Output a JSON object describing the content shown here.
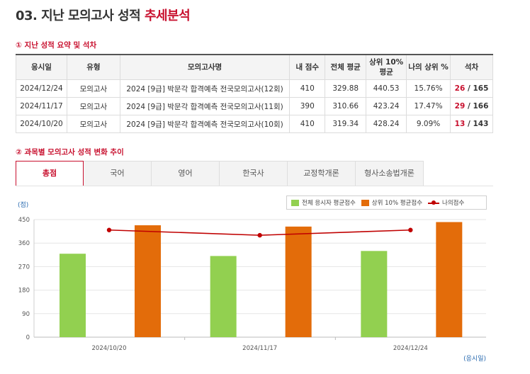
{
  "page": {
    "title_prefix": "03. 지난 모의고사 성적 ",
    "title_accent": "추세분석"
  },
  "summary": {
    "heading": "① 지난 성적 요약 및 석차",
    "columns": [
      "응시일",
      "유형",
      "모의고사명",
      "내 점수",
      "전체 평균",
      "상위 10%\n평균",
      "나의 상위 %",
      "석차"
    ],
    "rows": [
      {
        "date": "2024/12/24",
        "type": "모의고사",
        "name": "2024 [9급] 박문각 합격예측 전국모의고사(12회)",
        "score": "410",
        "avg": "329.88",
        "top10": "440.53",
        "pct": "15.76%",
        "rank": "26",
        "total": "165"
      },
      {
        "date": "2024/11/17",
        "type": "모의고사",
        "name": "2024 [9급] 박문각 합격예측 전국모의고사(11회)",
        "score": "390",
        "avg": "310.66",
        "top10": "423.24",
        "pct": "17.47%",
        "rank": "29",
        "total": "166"
      },
      {
        "date": "2024/10/20",
        "type": "모의고사",
        "name": "2024 [9급] 박문각 합격예측 전국모의고사(10회)",
        "score": "410",
        "avg": "319.34",
        "top10": "428.24",
        "pct": "9.09%",
        "rank": "13",
        "total": "143"
      }
    ]
  },
  "trend": {
    "heading": "② 과목별 모의고사 성적 변화 추이",
    "tabs": [
      "총점",
      "국어",
      "영어",
      "한국사",
      "교정학개론",
      "형사소송법개론"
    ],
    "active_tab": 0
  },
  "colors": {
    "avg": "#92d050",
    "top10": "#e36c0a",
    "mine": "#c00000",
    "accent": "#c8102e"
  },
  "chart_data": {
    "type": "bar",
    "ylabel": "(점)",
    "xlabel": "(응시일)",
    "ylim": [
      0,
      450
    ],
    "yticks": [
      0,
      90,
      180,
      270,
      360,
      450
    ],
    "grid": true,
    "legend_position": "top-right",
    "categories": [
      "2024/10/20",
      "2024/11/17",
      "2024/12/24"
    ],
    "series": [
      {
        "name": "전체 응시자 평균점수",
        "kind": "bar",
        "values": [
          319.34,
          310.66,
          329.88
        ]
      },
      {
        "name": "상위 10% 평균점수",
        "kind": "bar",
        "values": [
          428.24,
          423.24,
          440.53
        ]
      },
      {
        "name": "나의점수",
        "kind": "line",
        "values": [
          410,
          390,
          410
        ]
      }
    ]
  }
}
